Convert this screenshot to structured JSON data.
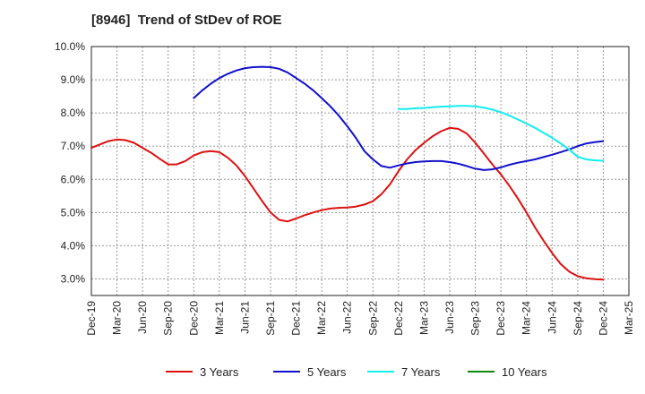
{
  "chart_data": {
    "type": "line",
    "title": "[8946]  Trend of StDev of ROE",
    "xlabel": "",
    "ylabel": "",
    "x_ticks": [
      "Dec-19",
      "Mar-20",
      "Jun-20",
      "Sep-20",
      "Dec-20",
      "Mar-21",
      "Jun-21",
      "Sep-21",
      "Dec-21",
      "Mar-22",
      "Jun-22",
      "Sep-22",
      "Dec-22",
      "Mar-23",
      "Jun-23",
      "Sep-23",
      "Dec-23",
      "Mar-24",
      "Jun-24",
      "Sep-24",
      "Dec-24",
      "Mar-25"
    ],
    "y_ticks": [
      "3.0%",
      "4.0%",
      "5.0%",
      "6.0%",
      "7.0%",
      "8.0%",
      "9.0%",
      "10.0%"
    ],
    "ylim": [
      2.5,
      10.0
    ],
    "grid": true,
    "legend_position": "bottom",
    "series": [
      {
        "name": "3 Years",
        "color": "#dd1111",
        "points": [
          [
            "Dec-19",
            6.95
          ],
          [
            "Jan-20",
            7.05
          ],
          [
            "Feb-20",
            7.15
          ],
          [
            "Mar-20",
            7.2
          ],
          [
            "Apr-20",
            7.18
          ],
          [
            "May-20",
            7.1
          ],
          [
            "Jun-20",
            6.95
          ],
          [
            "Jul-20",
            6.8
          ],
          [
            "Aug-20",
            6.62
          ],
          [
            "Sep-20",
            6.45
          ],
          [
            "Oct-20",
            6.45
          ],
          [
            "Nov-20",
            6.55
          ],
          [
            "Dec-20",
            6.72
          ],
          [
            "Jan-21",
            6.82
          ],
          [
            "Feb-21",
            6.85
          ],
          [
            "Mar-21",
            6.82
          ],
          [
            "Apr-21",
            6.65
          ],
          [
            "May-21",
            6.42
          ],
          [
            "Jun-21",
            6.1
          ],
          [
            "Jul-21",
            5.72
          ],
          [
            "Aug-21",
            5.35
          ],
          [
            "Sep-21",
            5.0
          ],
          [
            "Oct-21",
            4.78
          ],
          [
            "Nov-21",
            4.73
          ],
          [
            "Dec-21",
            4.82
          ],
          [
            "Jan-22",
            4.92
          ],
          [
            "Feb-22",
            5.0
          ],
          [
            "Mar-22",
            5.07
          ],
          [
            "Apr-22",
            5.12
          ],
          [
            "May-22",
            5.14
          ],
          [
            "Jun-22",
            5.15
          ],
          [
            "Jul-22",
            5.18
          ],
          [
            "Aug-22",
            5.24
          ],
          [
            "Sep-22",
            5.34
          ],
          [
            "Oct-22",
            5.55
          ],
          [
            "Nov-22",
            5.85
          ],
          [
            "Dec-22",
            6.25
          ],
          [
            "Jan-23",
            6.6
          ],
          [
            "Feb-23",
            6.88
          ],
          [
            "Mar-23",
            7.1
          ],
          [
            "Apr-23",
            7.3
          ],
          [
            "May-23",
            7.45
          ],
          [
            "Jun-23",
            7.55
          ],
          [
            "Jul-23",
            7.52
          ],
          [
            "Aug-23",
            7.38
          ],
          [
            "Sep-23",
            7.1
          ],
          [
            "Oct-23",
            6.78
          ],
          [
            "Nov-23",
            6.45
          ],
          [
            "Dec-23",
            6.15
          ],
          [
            "Jan-24",
            5.8
          ],
          [
            "Feb-24",
            5.42
          ],
          [
            "Mar-24",
            5.0
          ],
          [
            "Apr-24",
            4.55
          ],
          [
            "May-24",
            4.15
          ],
          [
            "Jun-24",
            3.78
          ],
          [
            "Jul-24",
            3.45
          ],
          [
            "Aug-24",
            3.22
          ],
          [
            "Sep-24",
            3.08
          ],
          [
            "Oct-24",
            3.02
          ],
          [
            "Nov-24",
            2.99
          ],
          [
            "Dec-24",
            2.98
          ]
        ]
      },
      {
        "name": "5 Years",
        "color": "#1111cc",
        "points": [
          [
            "Dec-20",
            8.45
          ],
          [
            "Jan-21",
            8.68
          ],
          [
            "Feb-21",
            8.88
          ],
          [
            "Mar-21",
            9.05
          ],
          [
            "Apr-21",
            9.18
          ],
          [
            "May-21",
            9.28
          ],
          [
            "Jun-21",
            9.35
          ],
          [
            "Jul-21",
            9.38
          ],
          [
            "Aug-21",
            9.39
          ],
          [
            "Sep-21",
            9.38
          ],
          [
            "Oct-21",
            9.33
          ],
          [
            "Nov-21",
            9.22
          ],
          [
            "Dec-21",
            9.05
          ],
          [
            "Jan-22",
            8.88
          ],
          [
            "Feb-22",
            8.68
          ],
          [
            "Mar-22",
            8.45
          ],
          [
            "Apr-22",
            8.2
          ],
          [
            "May-22",
            7.92
          ],
          [
            "Jun-22",
            7.6
          ],
          [
            "Jul-22",
            7.25
          ],
          [
            "Aug-22",
            6.85
          ],
          [
            "Sep-22",
            6.6
          ],
          [
            "Oct-22",
            6.4
          ],
          [
            "Nov-22",
            6.35
          ],
          [
            "Dec-22",
            6.42
          ],
          [
            "Jan-23",
            6.48
          ],
          [
            "Feb-23",
            6.52
          ],
          [
            "Mar-23",
            6.54
          ],
          [
            "Apr-23",
            6.55
          ],
          [
            "May-23",
            6.55
          ],
          [
            "Jun-23",
            6.52
          ],
          [
            "Jul-23",
            6.47
          ],
          [
            "Aug-23",
            6.4
          ],
          [
            "Sep-23",
            6.32
          ],
          [
            "Oct-23",
            6.28
          ],
          [
            "Nov-23",
            6.3
          ],
          [
            "Dec-23",
            6.36
          ],
          [
            "Jan-24",
            6.44
          ],
          [
            "Feb-24",
            6.5
          ],
          [
            "Mar-24",
            6.55
          ],
          [
            "Apr-24",
            6.6
          ],
          [
            "May-24",
            6.67
          ],
          [
            "Jun-24",
            6.74
          ],
          [
            "Jul-24",
            6.82
          ],
          [
            "Aug-24",
            6.9
          ],
          [
            "Sep-24",
            7.0
          ],
          [
            "Oct-24",
            7.08
          ],
          [
            "Nov-24",
            7.12
          ],
          [
            "Dec-24",
            7.15
          ]
        ]
      },
      {
        "name": "7 Years",
        "color": "#11eeee",
        "points": [
          [
            "Dec-22",
            8.12
          ],
          [
            "Jan-23",
            8.12
          ],
          [
            "Feb-23",
            8.14
          ],
          [
            "Mar-23",
            8.15
          ],
          [
            "Apr-23",
            8.17
          ],
          [
            "May-23",
            8.19
          ],
          [
            "Jun-23",
            8.2
          ],
          [
            "Jul-23",
            8.21
          ],
          [
            "Aug-23",
            8.21
          ],
          [
            "Sep-23",
            8.2
          ],
          [
            "Oct-23",
            8.16
          ],
          [
            "Nov-23",
            8.1
          ],
          [
            "Dec-23",
            8.02
          ],
          [
            "Jan-24",
            7.92
          ],
          [
            "Feb-24",
            7.8
          ],
          [
            "Mar-24",
            7.68
          ],
          [
            "Apr-24",
            7.55
          ],
          [
            "May-24",
            7.4
          ],
          [
            "Jun-24",
            7.25
          ],
          [
            "Jul-24",
            7.08
          ],
          [
            "Aug-24",
            6.9
          ],
          [
            "Sep-24",
            6.68
          ],
          [
            "Oct-24",
            6.6
          ],
          [
            "Nov-24",
            6.57
          ],
          [
            "Dec-24",
            6.56
          ]
        ]
      },
      {
        "name": "10 Years",
        "color": "#118811",
        "points": []
      }
    ]
  }
}
